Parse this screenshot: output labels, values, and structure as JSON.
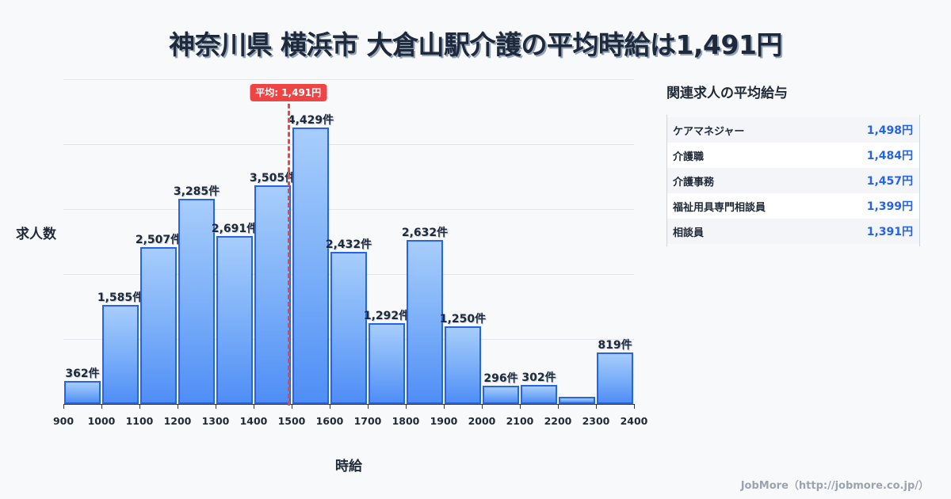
{
  "title": "神奈川県 横浜市 大倉山駅介護の平均時給は1,491円",
  "chart": {
    "ylabel": "求人数",
    "xlabel": "時給",
    "average_badge": "平均: 1,491円",
    "average_value": 1491,
    "unit_suffix": "件"
  },
  "chart_data": {
    "type": "bar",
    "title": "神奈川県 横浜市 大倉山駅介護の平均時給は1,491円",
    "xlabel": "時給",
    "ylabel": "求人数",
    "categories": [
      "900-1000",
      "1000-1100",
      "1100-1200",
      "1200-1300",
      "1300-1400",
      "1400-1500",
      "1500-1600",
      "1600-1700",
      "1700-1800",
      "1800-1900",
      "1900-2000",
      "2000-2100",
      "2100-2200",
      "2200-2300",
      "2300-2400"
    ],
    "bin_edges": [
      900,
      1000,
      1100,
      1200,
      1300,
      1400,
      1500,
      1600,
      1700,
      1800,
      1900,
      2000,
      2100,
      2200,
      2300,
      2400
    ],
    "values": [
      362,
      1585,
      2507,
      3285,
      2691,
      3505,
      4429,
      2432,
      1292,
      2632,
      1250,
      296,
      302,
      120,
      819
    ],
    "labels": [
      "362件",
      "1,585件",
      "2,507件",
      "3,285件",
      "2,691件",
      "3,505件",
      "4,429件",
      "2,432件",
      "1,292件",
      "2,632件",
      "1,250件",
      "296件",
      "302件",
      "",
      "819件"
    ],
    "x_tick_labels": [
      "900",
      "1000",
      "1100",
      "1200",
      "1300",
      "1400",
      "1500",
      "1600",
      "1700",
      "1800",
      "1900",
      "2000",
      "2100",
      "2200",
      "2300",
      "2400"
    ],
    "xlim": [
      900,
      2400
    ],
    "ylim": [
      0,
      5200
    ],
    "grid": true,
    "annotations": [
      {
        "type": "vline",
        "x": 1491,
        "label": "平均: 1,491円",
        "color": "#ef4444",
        "style": "dashed"
      }
    ]
  },
  "related": {
    "title": "関連求人の平均給与",
    "items": [
      {
        "name": "ケアマネジャー",
        "value": "1,498円"
      },
      {
        "name": "介護職",
        "value": "1,484円"
      },
      {
        "name": "介護事務",
        "value": "1,457円"
      },
      {
        "name": "福祉用具専門相談員",
        "value": "1,399円"
      },
      {
        "name": "相談員",
        "value": "1,391円"
      }
    ]
  },
  "footer": "JobMore（http://jobmore.co.jp/）",
  "colors": {
    "bar_border": "#2563eb",
    "bar_top": "#a7cdfb",
    "bar_bottom": "#4f8ef5",
    "average_line": "#ef4444",
    "related_value": "#2563eb"
  }
}
